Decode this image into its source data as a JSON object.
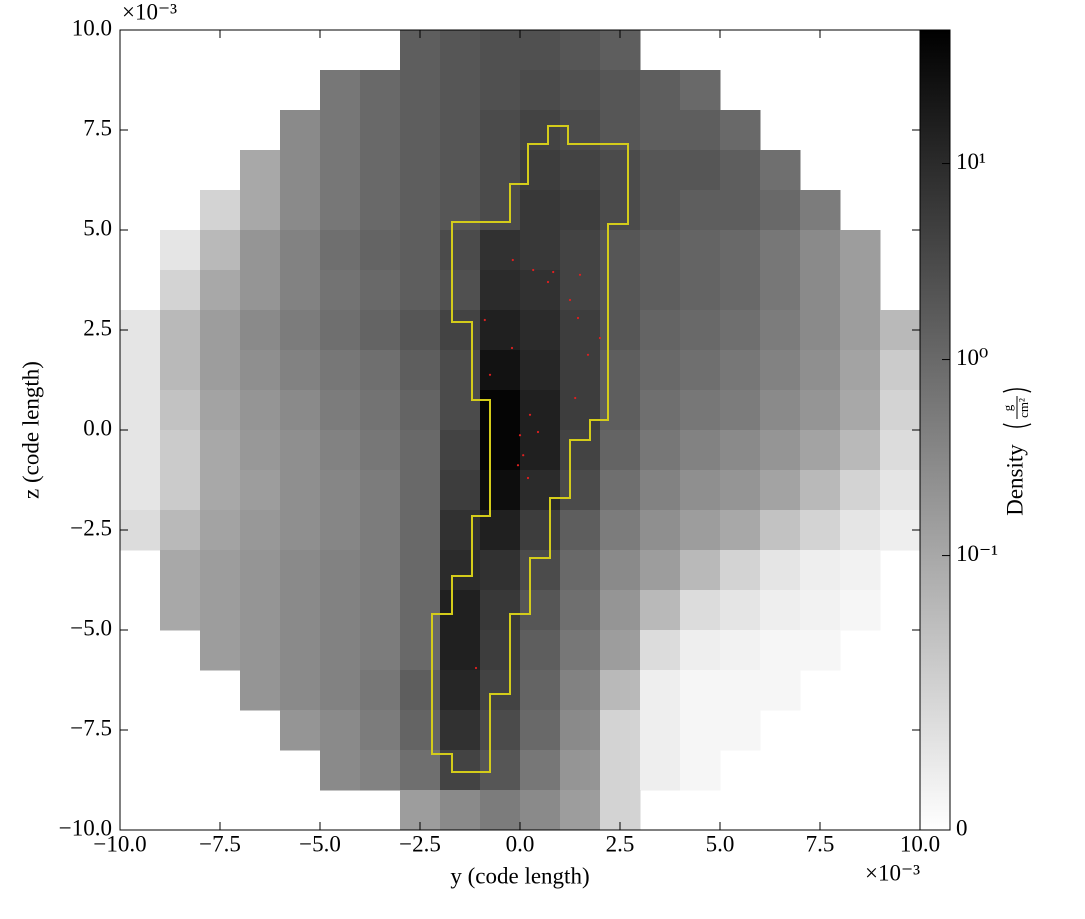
{
  "chart_data": {
    "type": "heatmap",
    "xlabel": "y  (code length)",
    "ylabel": "z  (code length)",
    "x_offset_label": "×10⁻³",
    "y_offset_label": "×10⁻³",
    "xlim": [
      -10,
      10
    ],
    "ylim": [
      -10,
      10
    ],
    "xticks": [
      {
        "value": -10,
        "label": "−10.0"
      },
      {
        "value": -7.5,
        "label": "−7.5"
      },
      {
        "value": -5,
        "label": "−5.0"
      },
      {
        "value": -2.5,
        "label": "−2.5"
      },
      {
        "value": 0,
        "label": "0.0"
      },
      {
        "value": 2.5,
        "label": "2.5"
      },
      {
        "value": 5,
        "label": "5.0"
      },
      {
        "value": 7.5,
        "label": "7.5"
      },
      {
        "value": 10,
        "label": "10.0"
      }
    ],
    "yticks": [
      {
        "value": -10,
        "label": "−10.0"
      },
      {
        "value": -7.5,
        "label": "−7.5"
      },
      {
        "value": -5,
        "label": "−5.0"
      },
      {
        "value": -2.5,
        "label": "−2.5"
      },
      {
        "value": 0,
        "label": "0.0"
      },
      {
        "value": 2.5,
        "label": "2.5"
      },
      {
        "value": 5,
        "label": "5.0"
      },
      {
        "value": 7.5,
        "label": "7.5"
      },
      {
        "value": 10,
        "label": "10.0"
      }
    ],
    "cmap": "gray_r",
    "colorbar": {
      "label": "Density",
      "unit_numerator": "g",
      "unit_denominator": "cm²",
      "lim": [
        0,
        48
      ],
      "linthresh": 0.1,
      "linscale": 1.4,
      "ticks": [
        {
          "value": 0,
          "label": "0"
        },
        {
          "value": 0.1,
          "label": "10⁻¹"
        },
        {
          "value": 1,
          "label": "10⁰"
        },
        {
          "value": 10,
          "label": "10¹"
        }
      ]
    },
    "x": [
      -9.5,
      -8.5,
      -7.5,
      -6.5,
      -5.5,
      -4.5,
      -3.5,
      -2.5,
      -1.5,
      -0.5,
      0.5,
      1.5,
      2.5,
      3.5,
      4.5,
      5.5,
      6.5,
      7.5,
      8.5,
      9.5
    ],
    "y": [
      9.5,
      8.5,
      7.5,
      6.5,
      5.5,
      4.5,
      3.5,
      2.5,
      1.5,
      0.5,
      -0.5,
      -1.5,
      -2.5,
      -3.5,
      -4.5,
      -5.5,
      -6.5,
      -7.5,
      -8.5,
      -9.5
    ],
    "z": [
      [
        null,
        null,
        null,
        null,
        null,
        null,
        null,
        1.5,
        2,
        2.5,
        2.5,
        2,
        1.5,
        null,
        null,
        null,
        null,
        null,
        null,
        null
      ],
      [
        null,
        null,
        null,
        null,
        null,
        0.6,
        1,
        1.5,
        2,
        2.5,
        3,
        2.5,
        2,
        1.5,
        1,
        null,
        null,
        null,
        null,
        null
      ],
      [
        null,
        null,
        null,
        null,
        0.3,
        0.6,
        1,
        1.5,
        2,
        3,
        4,
        3,
        2,
        1.5,
        1.5,
        1,
        null,
        null,
        null,
        null
      ],
      [
        null,
        null,
        null,
        0.1,
        0.3,
        0.6,
        1,
        1.5,
        2,
        3,
        5,
        4,
        3,
        2,
        2,
        1.5,
        0.8,
        null,
        null,
        null
      ],
      [
        null,
        null,
        0.05,
        0.1,
        0.3,
        0.6,
        1,
        1.5,
        2,
        3,
        6,
        5,
        3,
        2,
        1.5,
        1.5,
        1,
        0.5,
        null,
        null
      ],
      [
        null,
        0.03,
        0.08,
        0.2,
        0.4,
        0.8,
        1.2,
        1.5,
        3,
        8,
        6,
        4,
        2,
        1.5,
        1.2,
        1,
        0.6,
        0.3,
        0.15,
        null
      ],
      [
        null,
        0.05,
        0.1,
        0.2,
        0.4,
        0.7,
        1,
        1.5,
        2.5,
        10,
        8,
        4,
        2,
        1.5,
        1.2,
        1,
        0.6,
        0.3,
        0.15,
        null
      ],
      [
        0.03,
        0.08,
        0.15,
        0.3,
        0.5,
        0.8,
        1.2,
        2,
        4,
        15,
        10,
        5,
        2,
        1.2,
        1,
        0.8,
        0.5,
        0.3,
        0.15,
        0.08
      ],
      [
        0.03,
        0.08,
        0.15,
        0.25,
        0.4,
        0.6,
        0.8,
        1.5,
        3,
        25,
        12,
        5,
        1.5,
        1,
        0.8,
        0.6,
        0.4,
        0.25,
        0.12,
        0.06
      ],
      [
        0.03,
        0.07,
        0.12,
        0.2,
        0.3,
        0.5,
        0.7,
        1.2,
        3,
        40,
        15,
        5,
        1.5,
        0.8,
        0.6,
        0.5,
        0.3,
        0.2,
        0.1,
        0.05
      ],
      [
        0.03,
        0.06,
        0.1,
        0.18,
        0.25,
        0.4,
        0.6,
        1,
        4,
        40,
        15,
        4,
        1.2,
        0.6,
        0.4,
        0.3,
        0.2,
        0.12,
        0.08,
        0.04
      ],
      [
        0.03,
        0.06,
        0.1,
        0.15,
        0.25,
        0.35,
        0.5,
        1,
        5,
        30,
        10,
        3,
        0.8,
        0.4,
        0.25,
        0.2,
        0.12,
        0.08,
        0.05,
        0.03
      ],
      [
        0.04,
        0.08,
        0.12,
        0.18,
        0.25,
        0.35,
        0.5,
        1,
        8,
        15,
        5,
        1.5,
        0.5,
        0.25,
        0.15,
        0.1,
        0.07,
        0.05,
        0.03,
        0.02
      ],
      [
        null,
        0.1,
        0.15,
        0.2,
        0.3,
        0.4,
        0.5,
        1,
        10,
        8,
        3,
        1,
        0.3,
        0.15,
        0.08,
        0.05,
        0.03,
        0.02,
        0.015,
        null
      ],
      [
        null,
        0.1,
        0.15,
        0.2,
        0.3,
        0.4,
        0.5,
        1,
        15,
        6,
        2,
        0.8,
        0.2,
        0.08,
        0.04,
        0.03,
        0.02,
        0.015,
        0.01,
        null
      ],
      [
        null,
        null,
        0.15,
        0.2,
        0.3,
        0.4,
        0.5,
        1,
        15,
        5,
        1.5,
        0.6,
        0.15,
        0.04,
        0.02,
        0.015,
        0.01,
        0.01,
        null,
        null
      ],
      [
        null,
        null,
        null,
        0.2,
        0.3,
        0.4,
        0.6,
        1.5,
        12,
        4,
        1.2,
        0.4,
        0.08,
        0.02,
        0.01,
        0.01,
        0.01,
        null,
        null,
        null
      ],
      [
        null,
        null,
        null,
        null,
        0.2,
        0.3,
        0.5,
        1.2,
        8,
        3,
        1,
        0.3,
        0.05,
        0.02,
        0.01,
        0.01,
        null,
        null,
        null,
        null
      ],
      [
        null,
        null,
        null,
        null,
        null,
        0.3,
        0.4,
        0.8,
        4,
        2,
        0.6,
        0.2,
        0.05,
        0.02,
        0.01,
        null,
        null,
        null,
        null,
        null
      ],
      [
        null,
        null,
        null,
        null,
        null,
        null,
        null,
        0.15,
        0.3,
        0.5,
        0.3,
        0.15,
        0.05,
        null,
        null,
        null,
        null,
        null,
        null,
        null
      ]
    ],
    "contour": {
      "color": "#d4cc1a",
      "x": [
        -1.7,
        -0.25,
        -0.25,
        0.2,
        0.2,
        0.7,
        0.7,
        1.2,
        1.2,
        2.7,
        2.7,
        2.2,
        2.2,
        1.75,
        1.75,
        1.25,
        1.25,
        0.75,
        0.75,
        0.25,
        0.25,
        -0.25,
        -0.25,
        -0.75,
        -0.75,
        -1.7,
        -1.7,
        -2.2,
        -2.2,
        -1.7,
        -1.7,
        -1.2,
        -1.2,
        -0.75,
        -0.75,
        -1.2,
        -1.2,
        -1.7
      ],
      "y": [
        5.2,
        5.2,
        6.15,
        6.15,
        7.15,
        7.15,
        7.6,
        7.6,
        7.15,
        7.15,
        5.15,
        5.15,
        0.25,
        0.25,
        -0.25,
        -0.25,
        -1.7,
        -1.7,
        -3.2,
        -3.2,
        -4.6,
        -4.6,
        -6.6,
        -6.6,
        -8.55,
        -8.55,
        -8.1,
        -8.1,
        -4.6,
        -4.6,
        -3.65,
        -3.65,
        -2.15,
        -2.15,
        0.75,
        0.75,
        2.7,
        2.7
      ]
    },
    "particles": {
      "color": "#e02020",
      "x": [
        -0.18,
        0.33,
        0.83,
        1.5,
        0.7,
        1.25,
        1.45,
        2,
        -0.88,
        -0.2,
        1.7,
        -0.75,
        0.25,
        0,
        0.45,
        0.08,
        -0.05,
        0.2,
        1.38,
        -1.1
      ],
      "y": [
        4.25,
        4,
        3.95,
        3.88,
        3.7,
        3.25,
        2.8,
        2.3,
        2.75,
        2.05,
        1.88,
        1.38,
        0.38,
        -0.13,
        -0.05,
        -0.63,
        -0.88,
        -1.2,
        0.8,
        -5.95
      ]
    }
  }
}
